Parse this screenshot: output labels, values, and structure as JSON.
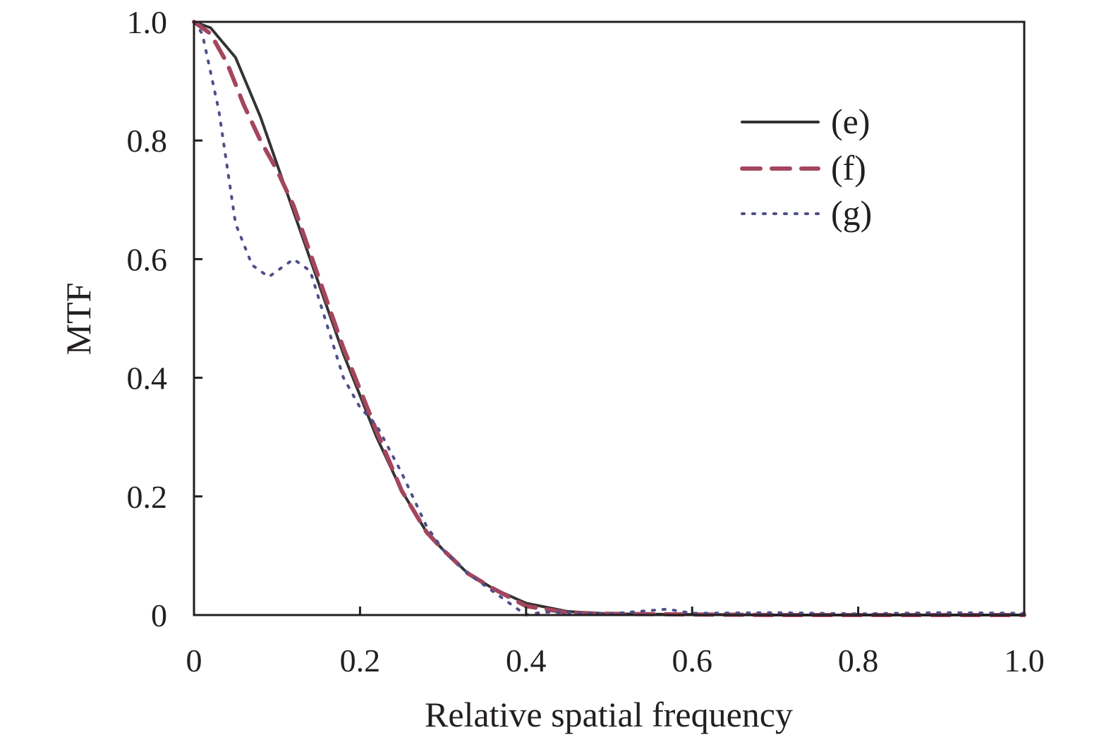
{
  "chart_data": {
    "type": "line",
    "title": "",
    "xlabel": "Relative spatial frequency",
    "ylabel": "MTF",
    "xlim": [
      0,
      1.0
    ],
    "ylim": [
      0,
      1.0
    ],
    "x_ticks": [
      0,
      0.2,
      0.4,
      0.6,
      0.8,
      1.0
    ],
    "x_tick_labels": [
      "0",
      "0.2",
      "0.4",
      "0.6",
      "0.8",
      "1.0"
    ],
    "y_ticks": [
      0,
      0.2,
      0.4,
      0.6,
      0.8,
      1.0
    ],
    "y_tick_labels": [
      "0",
      "0.2",
      "0.4",
      "0.6",
      "0.8",
      "1.0"
    ],
    "grid": false,
    "legend_position": "top-right",
    "series": [
      {
        "name": "(e)",
        "color": "#333333",
        "style": "solid",
        "x": [
          0,
          0.02,
          0.05,
          0.08,
          0.1,
          0.12,
          0.15,
          0.18,
          0.2,
          0.22,
          0.25,
          0.28,
          0.3,
          0.33,
          0.36,
          0.4,
          0.45,
          0.5,
          0.6,
          0.7,
          0.8,
          0.9,
          1.0
        ],
        "y": [
          1.0,
          0.99,
          0.94,
          0.84,
          0.76,
          0.68,
          0.56,
          0.44,
          0.37,
          0.3,
          0.21,
          0.14,
          0.11,
          0.07,
          0.045,
          0.02,
          0.006,
          0.002,
          0.001,
          0.0,
          0.0,
          0.0,
          0.0
        ]
      },
      {
        "name": "(f)",
        "color": "#a4465e",
        "style": "dashed",
        "x": [
          0,
          0.02,
          0.04,
          0.06,
          0.08,
          0.1,
          0.12,
          0.15,
          0.18,
          0.2,
          0.22,
          0.25,
          0.28,
          0.3,
          0.33,
          0.36,
          0.4,
          0.45,
          0.5,
          0.6,
          0.7,
          0.8,
          0.9,
          1.0
        ],
        "y": [
          1.0,
          0.98,
          0.93,
          0.86,
          0.8,
          0.75,
          0.69,
          0.57,
          0.45,
          0.38,
          0.31,
          0.21,
          0.14,
          0.11,
          0.07,
          0.045,
          0.015,
          0.004,
          0.002,
          0.001,
          0.0,
          0.0,
          0.0,
          0.0
        ]
      },
      {
        "name": "(g)",
        "color": "#4f4f8a",
        "style": "dotted",
        "x": [
          0,
          0.01,
          0.03,
          0.05,
          0.07,
          0.09,
          0.1,
          0.12,
          0.14,
          0.16,
          0.18,
          0.2,
          0.22,
          0.25,
          0.28,
          0.3,
          0.33,
          0.36,
          0.38,
          0.4,
          0.42,
          0.45,
          0.5,
          0.57,
          0.6,
          0.7,
          0.8,
          0.9,
          1.0
        ],
        "y": [
          1.0,
          0.98,
          0.85,
          0.66,
          0.59,
          0.57,
          0.58,
          0.6,
          0.58,
          0.49,
          0.4,
          0.35,
          0.32,
          0.24,
          0.15,
          0.11,
          0.07,
          0.04,
          0.02,
          0.0,
          0.005,
          0.004,
          0.002,
          0.01,
          0.003,
          0.004,
          0.002,
          0.004,
          0.003
        ]
      }
    ]
  }
}
